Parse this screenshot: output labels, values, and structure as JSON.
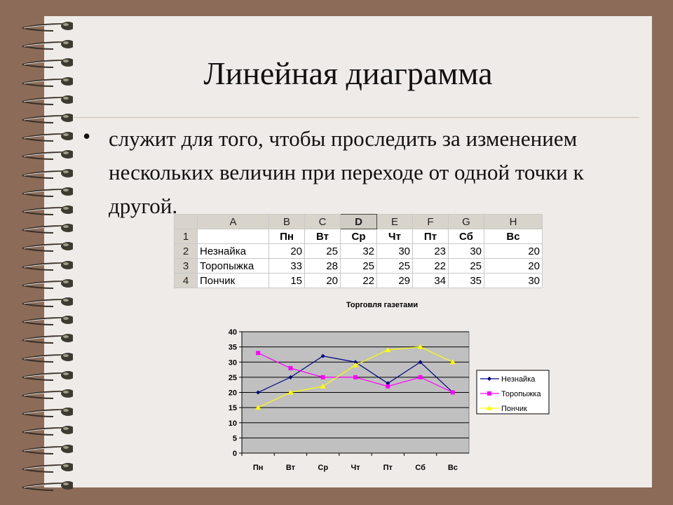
{
  "slide": {
    "title": "Линейная диаграмма",
    "bullet_text": "служит для того, чтобы проследить за изменением нескольких величин при переходе от одной точки к другой."
  },
  "table": {
    "col_letters": [
      "A",
      "B",
      "C",
      "D",
      "E",
      "F",
      "G",
      "H"
    ],
    "row_numbers": [
      "1",
      "2",
      "3",
      "4"
    ],
    "header": [
      "",
      "Пн",
      "Вт",
      "Ср",
      "Чт",
      "Пт",
      "Сб",
      "Вс"
    ],
    "rows": [
      [
        "Незнайка",
        "20",
        "25",
        "32",
        "30",
        "23",
        "30",
        "20"
      ],
      [
        "Торопыжка",
        "33",
        "28",
        "25",
        "25",
        "22",
        "25",
        "20"
      ],
      [
        "Пончик",
        "15",
        "20",
        "22",
        "29",
        "34",
        "35",
        "30"
      ]
    ]
  },
  "chart_data": {
    "type": "line",
    "title": "Торговля газетами",
    "categories": [
      "Пн",
      "Вт",
      "Ср",
      "Чт",
      "Пт",
      "Сб",
      "Вс"
    ],
    "ylim": [
      0,
      40
    ],
    "yticks": [
      0,
      5,
      10,
      15,
      20,
      25,
      30,
      35,
      40
    ],
    "grid": true,
    "legend": "right",
    "plot_background": "#c0c0c0",
    "series": [
      {
        "name": "Незнайка",
        "values": [
          20,
          25,
          32,
          30,
          23,
          30,
          20
        ],
        "color": "#000080",
        "marker": "diamond"
      },
      {
        "name": "Торопыжка",
        "values": [
          33,
          28,
          25,
          25,
          22,
          25,
          20
        ],
        "color": "#ff00ff",
        "marker": "square"
      },
      {
        "name": "Пончик",
        "values": [
          15,
          20,
          22,
          29,
          34,
          35,
          30
        ],
        "color": "#ffff00",
        "marker": "triangle"
      }
    ]
  }
}
